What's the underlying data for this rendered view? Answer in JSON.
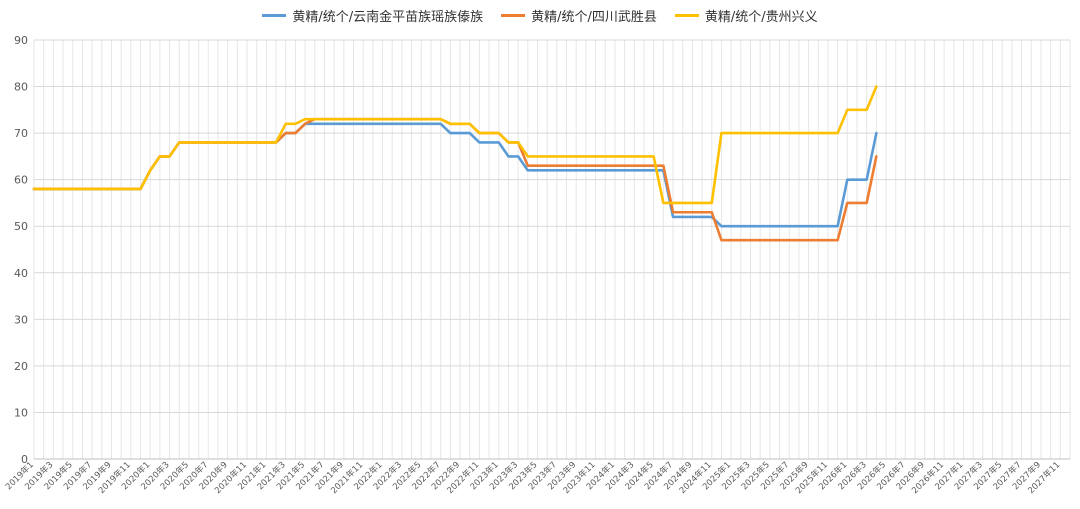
{
  "chart_data": {
    "type": "line",
    "title": "",
    "xlabel": "",
    "ylabel": "",
    "ylim": [
      0,
      90
    ],
    "y_ticks": [
      0,
      10,
      20,
      30,
      40,
      50,
      60,
      70,
      80,
      90
    ],
    "grid": true,
    "legend_position": "top",
    "x_tick_labels": [
      "2019年1",
      "2019年3",
      "2019年5",
      "2019年7",
      "2019年9",
      "2019年11",
      "2020年1",
      "2020年3",
      "2020年5",
      "2020年7",
      "2020年9",
      "2020年11",
      "2021年1",
      "2021年3",
      "2021年5",
      "2021年7",
      "2021年9",
      "2021年11",
      "2022年1",
      "2022年3",
      "2022年5",
      "2022年7",
      "2022年9",
      "2022年11",
      "2023年1",
      "2023年3",
      "2023年5",
      "2023年7",
      "2023年9",
      "2023年11",
      "2024年1",
      "2024年3",
      "2024年5",
      "2024年7",
      "2024年9",
      "2024年11",
      "2025年1",
      "2025年3",
      "2025年5",
      "2025年7",
      "2025年9",
      "2025年11",
      "2026年1",
      "2026年3",
      "2026年5",
      "2026年7",
      "2026年9",
      "2026年11",
      "2027年1",
      "2027年3",
      "2027年5",
      "2027年7",
      "2027年9",
      "2027年11"
    ],
    "series": [
      {
        "name": "黄精/统个/云南金平苗族瑶族傣族",
        "color": "#5b9bd5",
        "points": [
          [
            "2019-01",
            58
          ],
          [
            "2019-12",
            58
          ],
          [
            "2020-01",
            62
          ],
          [
            "2020-02",
            65
          ],
          [
            "2020-03",
            65
          ],
          [
            "2020-04",
            68
          ],
          [
            "2021-02",
            68
          ],
          [
            "2021-03",
            70
          ],
          [
            "2021-04",
            70
          ],
          [
            "2021-05",
            72
          ],
          [
            "2022-07",
            72
          ],
          [
            "2022-08",
            70
          ],
          [
            "2022-10",
            70
          ],
          [
            "2022-11",
            68
          ],
          [
            "2023-01",
            68
          ],
          [
            "2023-02",
            65
          ],
          [
            "2023-03",
            65
          ],
          [
            "2023-04",
            62
          ],
          [
            "2024-06",
            62
          ],
          [
            "2024-07",
            52
          ],
          [
            "2024-11",
            52
          ],
          [
            "2024-12",
            50
          ],
          [
            "2025-12",
            50
          ],
          [
            "2026-01",
            60
          ],
          [
            "2026-03",
            60
          ],
          [
            "2026-04",
            70
          ]
        ]
      },
      {
        "name": "黄精/统个/四川武胜县",
        "color": "#ed7d31",
        "points": [
          [
            "2019-01",
            58
          ],
          [
            "2019-12",
            58
          ],
          [
            "2020-01",
            62
          ],
          [
            "2020-02",
            65
          ],
          [
            "2020-03",
            65
          ],
          [
            "2020-04",
            68
          ],
          [
            "2021-02",
            68
          ],
          [
            "2021-03",
            70
          ],
          [
            "2021-04",
            70
          ],
          [
            "2021-05",
            72
          ],
          [
            "2021-06",
            73
          ],
          [
            "2022-07",
            73
          ],
          [
            "2022-08",
            72
          ],
          [
            "2022-10",
            72
          ],
          [
            "2022-11",
            70
          ],
          [
            "2023-01",
            70
          ],
          [
            "2023-02",
            68
          ],
          [
            "2023-03",
            68
          ],
          [
            "2023-04",
            63
          ],
          [
            "2024-06",
            63
          ],
          [
            "2024-07",
            53
          ],
          [
            "2024-11",
            53
          ],
          [
            "2024-12",
            47
          ],
          [
            "2025-12",
            47
          ],
          [
            "2026-01",
            55
          ],
          [
            "2026-03",
            55
          ],
          [
            "2026-04",
            65
          ]
        ]
      },
      {
        "name": "黄精/统个/贵州兴义",
        "color": "#ffc000",
        "points": [
          [
            "2019-01",
            58
          ],
          [
            "2019-12",
            58
          ],
          [
            "2020-01",
            62
          ],
          [
            "2020-02",
            65
          ],
          [
            "2020-03",
            65
          ],
          [
            "2020-04",
            68
          ],
          [
            "2021-02",
            68
          ],
          [
            "2021-03",
            72
          ],
          [
            "2021-04",
            72
          ],
          [
            "2021-05",
            73
          ],
          [
            "2022-07",
            73
          ],
          [
            "2022-08",
            72
          ],
          [
            "2022-10",
            72
          ],
          [
            "2022-11",
            70
          ],
          [
            "2023-01",
            70
          ],
          [
            "2023-02",
            68
          ],
          [
            "2023-03",
            68
          ],
          [
            "2023-04",
            65
          ],
          [
            "2024-05",
            65
          ],
          [
            "2024-06",
            55
          ],
          [
            "2024-11",
            55
          ],
          [
            "2024-12",
            70
          ],
          [
            "2025-12",
            70
          ],
          [
            "2026-01",
            75
          ],
          [
            "2026-03",
            75
          ],
          [
            "2026-04",
            80
          ]
        ]
      }
    ]
  }
}
